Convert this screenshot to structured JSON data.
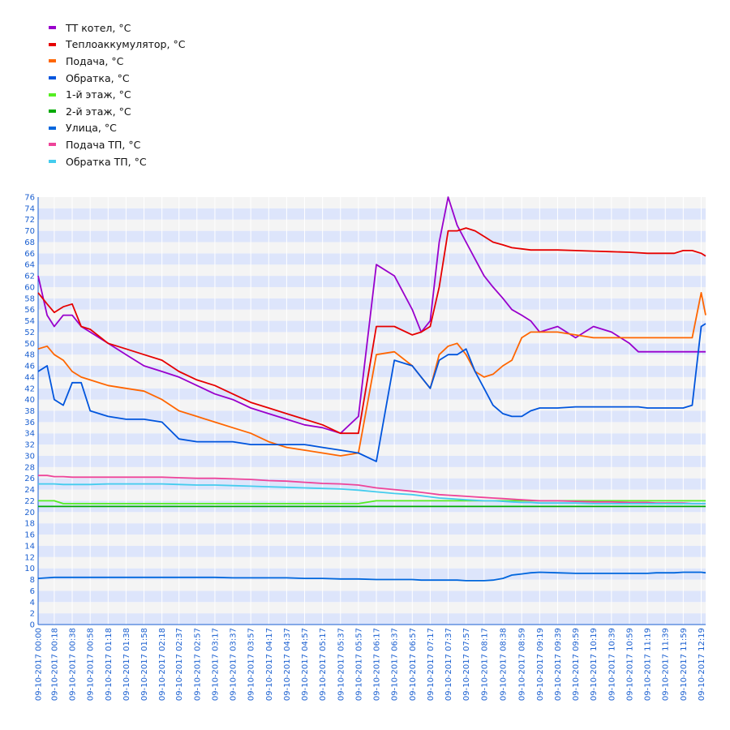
{
  "chart_data": {
    "type": "line",
    "title": "",
    "xlabel": "",
    "ylabel": "",
    "ylim": [
      0,
      76
    ],
    "y_ticks": [
      0,
      2,
      4,
      6,
      8,
      10,
      12,
      14,
      16,
      18,
      20,
      22,
      24,
      26,
      28,
      30,
      32,
      34,
      36,
      38,
      40,
      42,
      44,
      46,
      48,
      50,
      52,
      54,
      56,
      58,
      60,
      62,
      64,
      66,
      68,
      70,
      72,
      74,
      76
    ],
    "x_ticks": [
      "09-10-2017 00:00",
      "09-10-2017 00:18",
      "09-10-2017 00:38",
      "09-10-2017 00:58",
      "09-10-2017 01:18",
      "09-10-2017 01:38",
      "09-10-2017 01:58",
      "09-10-2017 02:18",
      "09-10-2017 02:37",
      "09-10-2017 02:57",
      "09-10-2017 03:17",
      "09-10-2017 03:37",
      "09-10-2017 03:57",
      "09-10-2017 04:17",
      "09-10-2017 04:37",
      "09-10-2017 04:57",
      "09-10-2017 05:17",
      "09-10-2017 05:37",
      "09-10-2017 05:57",
      "09-10-2017 06:17",
      "09-10-2017 06:37",
      "09-10-2017 06:57",
      "09-10-2017 07:17",
      "09-10-2017 07:37",
      "09-10-2017 07:57",
      "09-10-2017 08:17",
      "09-10-2017 08:38",
      "09-10-2017 08:59",
      "09-10-2017 09:19",
      "09-10-2017 09:39",
      "09-10-2017 09:59",
      "09-10-2017 10:19",
      "09-10-2017 10:39",
      "09-10-2017 10:59",
      "09-10-2017 11:19",
      "09-10-2017 11:39",
      "09-10-2017 11:59",
      "09-10-2017 12:19"
    ],
    "x": [
      "00:00",
      "00:10",
      "00:18",
      "00:28",
      "00:38",
      "00:48",
      "00:58",
      "01:18",
      "01:38",
      "01:58",
      "02:18",
      "02:37",
      "02:57",
      "03:17",
      "03:37",
      "03:57",
      "04:17",
      "04:37",
      "04:57",
      "05:17",
      "05:37",
      "05:57",
      "06:17",
      "06:37",
      "06:57",
      "07:07",
      "07:17",
      "07:27",
      "07:37",
      "07:47",
      "07:57",
      "08:07",
      "08:17",
      "08:27",
      "08:38",
      "08:48",
      "08:59",
      "09:09",
      "09:19",
      "09:39",
      "09:59",
      "10:19",
      "10:39",
      "10:59",
      "11:09",
      "11:19",
      "11:29",
      "11:39",
      "11:49",
      "11:59",
      "12:09",
      "12:19",
      "12:24"
    ],
    "legend_position": "top-left",
    "grid": true,
    "series": [
      {
        "name": "ТТ котел, °C",
        "color": "#9900cc",
        "values": [
          62,
          55,
          53,
          55,
          55,
          53,
          52,
          50,
          48,
          46,
          45,
          44,
          42.5,
          41,
          40,
          38.5,
          37.5,
          36.5,
          35.5,
          35,
          34,
          37,
          64,
          62,
          56,
          52,
          54,
          68,
          76,
          71,
          68,
          65,
          62,
          60,
          58,
          56,
          55,
          54,
          52,
          53,
          51,
          53,
          52,
          50,
          48.5,
          48.5,
          48.5,
          48.5,
          48.5,
          48.5,
          48.5,
          48.5,
          48.5
        ]
      },
      {
        "name": "Теплоаккумулятор, °C",
        "color": "#e60000",
        "values": [
          59,
          57,
          55.5,
          56.5,
          57,
          53,
          52.5,
          50,
          49,
          48,
          47,
          45,
          43.5,
          42.5,
          41,
          39.5,
          38.5,
          37.5,
          36.5,
          35.5,
          34,
          34,
          53,
          53,
          51.5,
          52,
          53,
          60,
          70,
          70,
          70.5,
          70,
          69,
          68,
          67.5,
          67,
          66.8,
          66.6,
          66.6,
          66.6,
          66.5,
          66.4,
          66.3,
          66.2,
          66.1,
          66,
          66,
          66,
          66,
          66.5,
          66.5,
          66,
          65.5
        ]
      },
      {
        "name": "Подача, °C",
        "color": "#ff6600",
        "values": [
          49,
          49.5,
          48,
          47,
          45,
          44,
          43.5,
          42.5,
          42,
          41.5,
          40,
          38,
          37,
          36,
          35,
          34,
          32.5,
          31.5,
          31,
          30.5,
          30,
          30.5,
          48,
          48.5,
          46,
          44,
          42,
          48,
          49.5,
          50,
          48,
          45,
          44,
          44.5,
          46,
          47,
          51,
          52,
          52,
          52,
          51.5,
          51,
          51,
          51,
          51,
          51,
          51,
          51,
          51,
          51,
          51,
          59,
          55
        ]
      },
      {
        "name": "Обратка, °C",
        "color": "#0055dd",
        "values": [
          45,
          46,
          40,
          39,
          43,
          43,
          38,
          37,
          36.5,
          36.5,
          36,
          33,
          32.5,
          32.5,
          32.5,
          32,
          32,
          32,
          32,
          31.5,
          31,
          30.5,
          29,
          47,
          46,
          44,
          42,
          47,
          48,
          48,
          49,
          45,
          42,
          39,
          37.5,
          37,
          37,
          38,
          38.5,
          38.5,
          38.7,
          38.7,
          38.7,
          38.7,
          38.7,
          38.5,
          38.5,
          38.5,
          38.5,
          38.5,
          39,
          53,
          53.5
        ]
      },
      {
        "name": "1-й этаж, °C",
        "color": "#55ee22",
        "values": [
          22,
          22,
          22,
          21.5,
          21.5,
          21.5,
          21.5,
          21.5,
          21.5,
          21.5,
          21.5,
          21.5,
          21.5,
          21.5,
          21.5,
          21.5,
          21.5,
          21.5,
          21.5,
          21.5,
          21.5,
          21.5,
          22,
          22,
          22,
          22,
          22,
          22,
          22,
          22,
          22,
          22,
          22,
          22,
          22,
          22,
          22,
          22,
          22,
          22,
          22,
          22,
          22,
          22,
          22,
          22,
          22,
          22,
          22,
          22,
          22,
          22,
          22
        ]
      },
      {
        "name": "2-й этаж, °C",
        "color": "#00aa00",
        "values": [
          21,
          21,
          21,
          21,
          21,
          21,
          21,
          21,
          21,
          21,
          21,
          21,
          21,
          21,
          21,
          21,
          21,
          21,
          21,
          21,
          21,
          21,
          21,
          21,
          21,
          21,
          21,
          21,
          21,
          21,
          21,
          21,
          21,
          21,
          21,
          21,
          21,
          21,
          21,
          21,
          21,
          21,
          21,
          21,
          21,
          21,
          21,
          21,
          21,
          21,
          21,
          21,
          21
        ]
      },
      {
        "name": "Улица, °C",
        "color": "#0066dd",
        "values": [
          8.2,
          8.3,
          8.4,
          8.4,
          8.4,
          8.4,
          8.4,
          8.4,
          8.4,
          8.4,
          8.4,
          8.4,
          8.4,
          8.4,
          8.3,
          8.3,
          8.3,
          8.3,
          8.2,
          8.2,
          8.1,
          8.1,
          8,
          8,
          8,
          7.9,
          7.9,
          7.9,
          7.9,
          7.9,
          7.8,
          7.8,
          7.8,
          7.9,
          8.2,
          8.8,
          9,
          9.2,
          9.3,
          9.2,
          9.1,
          9.1,
          9.1,
          9.1,
          9.1,
          9.1,
          9.2,
          9.2,
          9.2,
          9.3,
          9.3,
          9.3,
          9.2
        ]
      },
      {
        "name": "Подача ТП, °C",
        "color": "#ee4499",
        "values": [
          26.5,
          26.5,
          26.3,
          26.3,
          26.2,
          26.2,
          26.2,
          26.2,
          26.2,
          26.2,
          26.2,
          26.1,
          26,
          26,
          25.9,
          25.8,
          25.6,
          25.5,
          25.3,
          25.1,
          25,
          24.8,
          24.3,
          24,
          23.7,
          23.5,
          23.3,
          23.1,
          23,
          22.9,
          22.8,
          22.7,
          22.6,
          22.5,
          22.4,
          22.3,
          22.2,
          22.1,
          22,
          22,
          21.9,
          21.8,
          21.8,
          21.7,
          21.7,
          21.7,
          21.6,
          21.6,
          21.6,
          21.6,
          21.5,
          21.5,
          21.5
        ]
      },
      {
        "name": "Обратка ТП, °C",
        "color": "#44ccee",
        "values": [
          25,
          25,
          25,
          24.9,
          24.9,
          24.9,
          24.9,
          25,
          25,
          25,
          25,
          24.9,
          24.8,
          24.8,
          24.7,
          24.6,
          24.5,
          24.4,
          24.3,
          24.2,
          24.1,
          23.9,
          23.6,
          23.3,
          23.1,
          22.9,
          22.7,
          22.5,
          22.4,
          22.3,
          22.2,
          22.1,
          22,
          22,
          21.9,
          21.8,
          21.7,
          21.7,
          21.6,
          21.6,
          21.6,
          21.5,
          21.5,
          21.5,
          21.5,
          21.5,
          21.5,
          21.5,
          21.5,
          21.5,
          21.5,
          21.5,
          21.5
        ]
      }
    ]
  }
}
